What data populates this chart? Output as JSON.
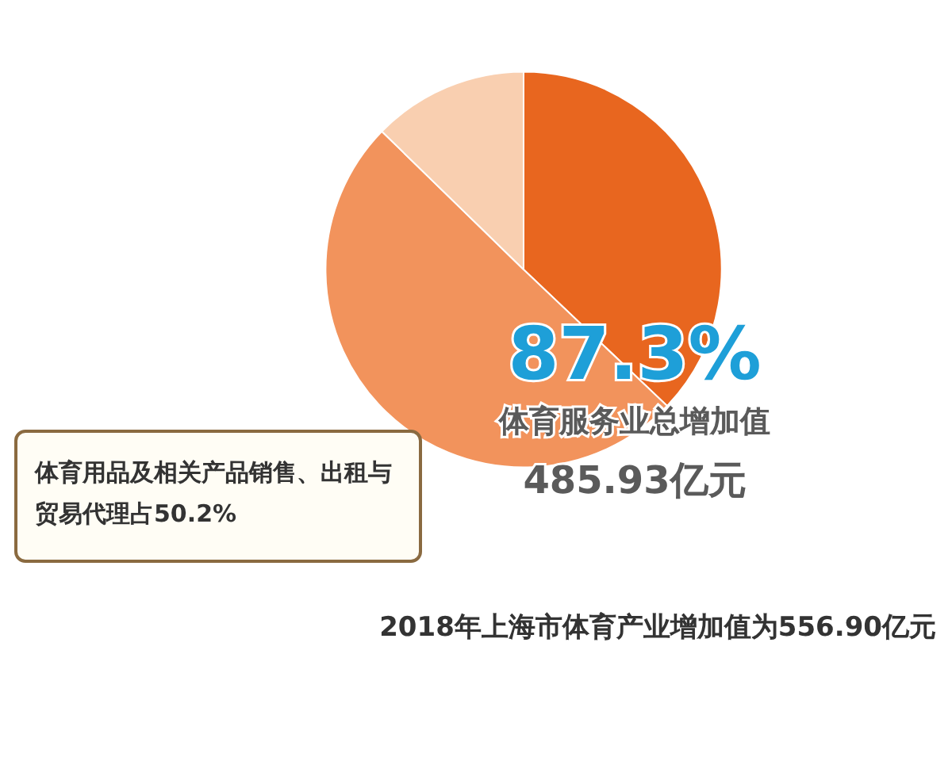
{
  "chart_data": {
    "type": "pie",
    "categories": [
      null,
      null,
      null
    ],
    "values": [
      37.1,
      50.2,
      12.7
    ],
    "colors": [
      "#e8661f",
      "#f2935c",
      "#f9cfb0"
    ],
    "annotations": [
      "87.3%",
      "体育服务业总增加值",
      "485.93亿元",
      "体育用品及相关产品销售、出租与贸易代理占50.2%",
      "2018年上海市体育产业增加值为556.90亿元"
    ]
  }
}
